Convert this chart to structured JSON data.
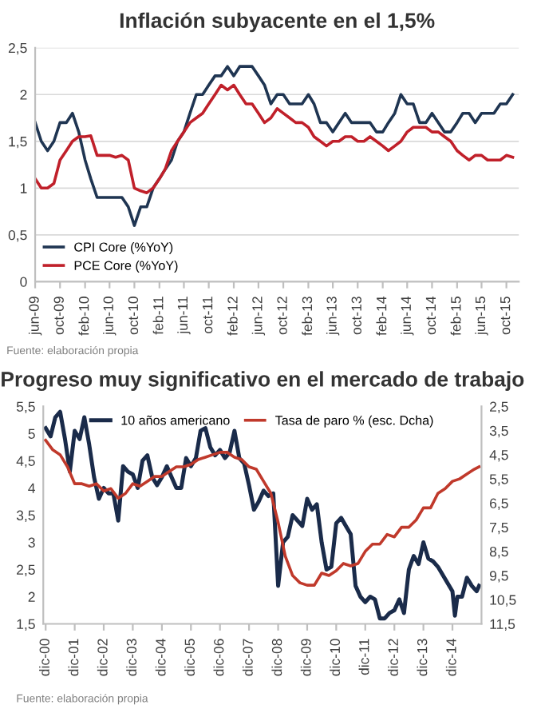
{
  "chart_data": [
    {
      "type": "line",
      "title": "Inflación subyacente en el 1,5%",
      "x": [
        "2009-06",
        "2009-07",
        "2009-08",
        "2009-09",
        "2009-10",
        "2009-11",
        "2009-12",
        "2010-01",
        "2010-02",
        "2010-03",
        "2010-04",
        "2010-05",
        "2010-06",
        "2010-07",
        "2010-08",
        "2010-09",
        "2010-10",
        "2010-11",
        "2010-12",
        "2011-01",
        "2011-02",
        "2011-03",
        "2011-04",
        "2011-05",
        "2011-06",
        "2011-07",
        "2011-08",
        "2011-09",
        "2011-10",
        "2011-11",
        "2011-12",
        "2012-01",
        "2012-02",
        "2012-03",
        "2012-04",
        "2012-05",
        "2012-06",
        "2012-07",
        "2012-08",
        "2012-09",
        "2012-10",
        "2012-11",
        "2012-12",
        "2013-01",
        "2013-02",
        "2013-03",
        "2013-04",
        "2013-05",
        "2013-06",
        "2013-07",
        "2013-08",
        "2013-09",
        "2013-10",
        "2013-11",
        "2013-12",
        "2014-01",
        "2014-02",
        "2014-03",
        "2014-04",
        "2014-05",
        "2014-06",
        "2014-07",
        "2014-08",
        "2014-09",
        "2014-10",
        "2014-11",
        "2014-12",
        "2015-01",
        "2015-02",
        "2015-03",
        "2015-04",
        "2015-05",
        "2015-06",
        "2015-07",
        "2015-08",
        "2015-09",
        "2015-10",
        "2015-11"
      ],
      "series": [
        {
          "name": "CPI Core (%YoY)",
          "color": "#1f3552",
          "values": [
            1.7,
            1.5,
            1.4,
            1.5,
            1.7,
            1.7,
            1.8,
            1.6,
            1.3,
            1.1,
            0.9,
            0.9,
            0.9,
            0.9,
            0.9,
            0.8,
            0.6,
            0.8,
            0.8,
            1.0,
            1.1,
            1.2,
            1.3,
            1.5,
            1.6,
            1.8,
            2.0,
            2.0,
            2.1,
            2.2,
            2.2,
            2.3,
            2.2,
            2.3,
            2.3,
            2.3,
            2.2,
            2.1,
            1.9,
            2.0,
            2.0,
            1.9,
            1.9,
            1.9,
            2.0,
            1.9,
            1.7,
            1.7,
            1.6,
            1.7,
            1.8,
            1.7,
            1.7,
            1.7,
            1.7,
            1.6,
            1.6,
            1.7,
            1.8,
            2.0,
            1.9,
            1.9,
            1.7,
            1.7,
            1.8,
            1.7,
            1.6,
            1.6,
            1.7,
            1.8,
            1.8,
            1.7,
            1.8,
            1.8,
            1.8,
            1.9,
            1.9,
            2.0
          ]
        },
        {
          "name": "PCE Core (%YoY)",
          "color": "#c0202a",
          "values": [
            1.1,
            1.0,
            1.0,
            1.05,
            1.3,
            1.4,
            1.5,
            1.55,
            1.55,
            1.56,
            1.35,
            1.35,
            1.35,
            1.33,
            1.35,
            1.3,
            1.0,
            0.97,
            0.95,
            1.0,
            1.1,
            1.2,
            1.4,
            1.5,
            1.6,
            1.7,
            1.75,
            1.8,
            1.9,
            2.0,
            2.1,
            2.05,
            2.1,
            2.0,
            1.9,
            1.9,
            1.8,
            1.7,
            1.75,
            1.85,
            1.8,
            1.75,
            1.7,
            1.7,
            1.65,
            1.55,
            1.5,
            1.45,
            1.5,
            1.5,
            1.55,
            1.55,
            1.5,
            1.5,
            1.55,
            1.5,
            1.45,
            1.4,
            1.45,
            1.5,
            1.6,
            1.65,
            1.65,
            1.65,
            1.6,
            1.6,
            1.55,
            1.5,
            1.4,
            1.35,
            1.3,
            1.35,
            1.35,
            1.3,
            1.3,
            1.3,
            1.35,
            1.33
          ]
        }
      ],
      "xlim": [
        "2009-06",
        "2015-12"
      ],
      "xticks": [
        {
          "value": "2009-06",
          "label": "jun-09"
        },
        {
          "value": "2009-10",
          "label": "oct-09"
        },
        {
          "value": "2010-02",
          "label": "feb-10"
        },
        {
          "value": "2010-06",
          "label": "jun-10"
        },
        {
          "value": "2010-10",
          "label": "oct-10"
        },
        {
          "value": "2011-02",
          "label": "feb-11"
        },
        {
          "value": "2011-06",
          "label": "jun-11"
        },
        {
          "value": "2011-10",
          "label": "oct-11"
        },
        {
          "value": "2012-02",
          "label": "feb-12"
        },
        {
          "value": "2012-06",
          "label": "jun-12"
        },
        {
          "value": "2012-10",
          "label": "oct-12"
        },
        {
          "value": "2013-02",
          "label": "feb-13"
        },
        {
          "value": "2013-06",
          "label": "jun-13"
        },
        {
          "value": "2013-10",
          "label": "oct-13"
        },
        {
          "value": "2014-02",
          "label": "feb-14"
        },
        {
          "value": "2014-06",
          "label": "jun-14"
        },
        {
          "value": "2014-10",
          "label": "oct-14"
        },
        {
          "value": "2015-02",
          "label": "feb-15"
        },
        {
          "value": "2015-06",
          "label": "jun-15"
        },
        {
          "value": "2015-10",
          "label": "oct-15"
        }
      ],
      "ylim": [
        0,
        2.5
      ],
      "yticks": [
        0,
        {
          "value": 0.5,
          "label": "0,5"
        },
        1,
        {
          "value": 1.5,
          "label": "1,5"
        },
        2,
        {
          "value": 2.5,
          "label": "2,5"
        }
      ],
      "grid": "y",
      "legend": "bottom left",
      "annotations": [
        "Fuente: elaboración propia"
      ]
    },
    {
      "type": "line",
      "title": "Progreso muy significativo en el mercado de trabajo",
      "series": [
        {
          "name": "10 años americano",
          "color": "#1a2b4a",
          "x": [
            "2000-12",
            "2001-02",
            "2001-04",
            "2001-06",
            "2001-08",
            "2001-10",
            "2001-12",
            "2002-02",
            "2002-04",
            "2002-06",
            "2002-08",
            "2002-10",
            "2002-12",
            "2003-02",
            "2003-04",
            "2003-06",
            "2003-08",
            "2003-10",
            "2003-12",
            "2004-02",
            "2004-04",
            "2004-06",
            "2004-08",
            "2004-10",
            "2004-12",
            "2005-02",
            "2005-04",
            "2005-06",
            "2005-08",
            "2005-10",
            "2005-12",
            "2006-02",
            "2006-04",
            "2006-06",
            "2006-08",
            "2006-10",
            "2006-12",
            "2007-02",
            "2007-04",
            "2007-06",
            "2007-08",
            "2007-10",
            "2007-12",
            "2008-02",
            "2008-04",
            "2008-06",
            "2008-08",
            "2008-10",
            "2008-12",
            "2009-02",
            "2009-04",
            "2009-06",
            "2009-08",
            "2009-10",
            "2009-12",
            "2010-02",
            "2010-04",
            "2010-06",
            "2010-08",
            "2010-10",
            "2010-12",
            "2011-02",
            "2011-04",
            "2011-06",
            "2011-08",
            "2011-10",
            "2011-12",
            "2012-02",
            "2012-04",
            "2012-06",
            "2012-08",
            "2012-10",
            "2012-12",
            "2013-02",
            "2013-04",
            "2013-06",
            "2013-08",
            "2013-10",
            "2013-12",
            "2014-02",
            "2014-04",
            "2014-06",
            "2014-08",
            "2014-10",
            "2014-12",
            "2015-01",
            "2015-02",
            "2015-04",
            "2015-06",
            "2015-08",
            "2015-10",
            "2015-11"
          ],
          "values": [
            5.1,
            4.95,
            5.3,
            5.4,
            4.9,
            4.3,
            5.05,
            4.9,
            5.3,
            4.8,
            4.2,
            3.8,
            4.0,
            3.9,
            3.9,
            3.4,
            4.4,
            4.3,
            4.25,
            4.0,
            4.5,
            4.6,
            4.2,
            4.05,
            4.2,
            4.4,
            4.2,
            4.0,
            4.0,
            4.55,
            4.4,
            4.55,
            5.05,
            5.1,
            4.75,
            4.6,
            4.7,
            4.55,
            4.65,
            5.05,
            4.55,
            4.45,
            4.05,
            3.6,
            3.75,
            3.95,
            3.85,
            3.9,
            2.2,
            3.0,
            3.1,
            3.5,
            3.4,
            3.3,
            3.8,
            3.6,
            3.7,
            3.0,
            2.5,
            2.55,
            3.35,
            3.45,
            3.3,
            3.15,
            2.2,
            2.0,
            1.9,
            2.0,
            1.95,
            1.6,
            1.6,
            1.7,
            1.75,
            1.95,
            1.7,
            2.5,
            2.75,
            2.6,
            3.0,
            2.7,
            2.65,
            2.55,
            2.4,
            2.25,
            2.1,
            1.65,
            2.0,
            2.0,
            2.35,
            2.2,
            2.1,
            2.2
          ]
        },
        {
          "name": "Tasa de paro % (esc. Dcha)",
          "color": "#c0392b",
          "axis": "y2",
          "x": [
            "2000-12",
            "2001-03",
            "2001-06",
            "2001-09",
            "2001-12",
            "2002-03",
            "2002-06",
            "2002-09",
            "2002-12",
            "2003-03",
            "2003-06",
            "2003-09",
            "2003-12",
            "2004-03",
            "2004-06",
            "2004-09",
            "2004-12",
            "2005-03",
            "2005-06",
            "2005-09",
            "2005-12",
            "2006-03",
            "2006-06",
            "2006-09",
            "2006-12",
            "2007-03",
            "2007-06",
            "2007-09",
            "2007-12",
            "2008-03",
            "2008-06",
            "2008-09",
            "2008-12",
            "2009-03",
            "2009-06",
            "2009-09",
            "2009-12",
            "2010-03",
            "2010-06",
            "2010-09",
            "2010-12",
            "2011-03",
            "2011-06",
            "2011-09",
            "2011-12",
            "2012-03",
            "2012-06",
            "2012-09",
            "2012-12",
            "2013-03",
            "2013-06",
            "2013-09",
            "2013-12",
            "2014-03",
            "2014-06",
            "2014-09",
            "2014-12",
            "2015-03",
            "2015-06",
            "2015-09",
            "2015-11"
          ],
          "values": [
            3.9,
            4.3,
            4.5,
            5.0,
            5.7,
            5.7,
            5.8,
            5.7,
            6.0,
            5.9,
            6.3,
            6.1,
            5.7,
            5.8,
            5.6,
            5.4,
            5.4,
            5.2,
            5.0,
            5.0,
            4.9,
            4.7,
            4.6,
            4.5,
            4.4,
            4.4,
            4.6,
            4.7,
            5.0,
            5.1,
            5.6,
            6.1,
            7.3,
            8.7,
            9.5,
            9.8,
            9.9,
            9.9,
            9.4,
            9.5,
            9.3,
            9.0,
            9.1,
            9.0,
            8.5,
            8.2,
            8.2,
            7.8,
            7.9,
            7.5,
            7.5,
            7.2,
            6.7,
            6.7,
            6.1,
            5.9,
            5.6,
            5.5,
            5.3,
            5.1,
            5.0
          ]
        }
      ],
      "xlim": [
        "2000-11",
        "2015-12"
      ],
      "xticks": [
        {
          "value": "2000-12",
          "label": "dic-00"
        },
        {
          "value": "2001-12",
          "label": "dic-01"
        },
        {
          "value": "2002-12",
          "label": "dic-02"
        },
        {
          "value": "2003-12",
          "label": "dic-03"
        },
        {
          "value": "2004-12",
          "label": "dic-04"
        },
        {
          "value": "2005-12",
          "label": "dic-05"
        },
        {
          "value": "2006-12",
          "label": "dic-06"
        },
        {
          "value": "2007-12",
          "label": "dic-07"
        },
        {
          "value": "2008-12",
          "label": "dic-08"
        },
        {
          "value": "2009-12",
          "label": "dic-09"
        },
        {
          "value": "2010-12",
          "label": "dic-10"
        },
        {
          "value": "2011-12",
          "label": "dic-11"
        },
        {
          "value": "2012-12",
          "label": "dic-12"
        },
        {
          "value": "2013-12",
          "label": "dic-13"
        },
        {
          "value": "2014-12",
          "label": "dic-14"
        }
      ],
      "ylim": [
        1.5,
        5.5
      ],
      "yticks": [
        {
          "value": 1.5,
          "label": "1,5"
        },
        2,
        {
          "value": 2.5,
          "label": "2,5"
        },
        3,
        {
          "value": 3.5,
          "label": "3,5"
        },
        4,
        {
          "value": 4.5,
          "label": "4,5"
        },
        5,
        {
          "value": 5.5,
          "label": "5,5"
        }
      ],
      "y2lim": [
        11.5,
        2.5
      ],
      "y2ticks": [
        {
          "value": 11.5,
          "label": "11,5"
        },
        {
          "value": 10.5,
          "label": "10,5"
        },
        {
          "value": 9.5,
          "label": "9,5"
        },
        {
          "value": 8.5,
          "label": "8,5"
        },
        {
          "value": 7.5,
          "label": "7,5"
        },
        {
          "value": 6.5,
          "label": "6,5"
        },
        {
          "value": 5.5,
          "label": "5,5"
        },
        {
          "value": 4.5,
          "label": "4,5"
        },
        {
          "value": 3.5,
          "label": "3,5"
        },
        {
          "value": 2.5,
          "label": "2,5"
        }
      ],
      "legend": "top",
      "annotations": [
        "Fuente: elaboración propia"
      ]
    }
  ]
}
